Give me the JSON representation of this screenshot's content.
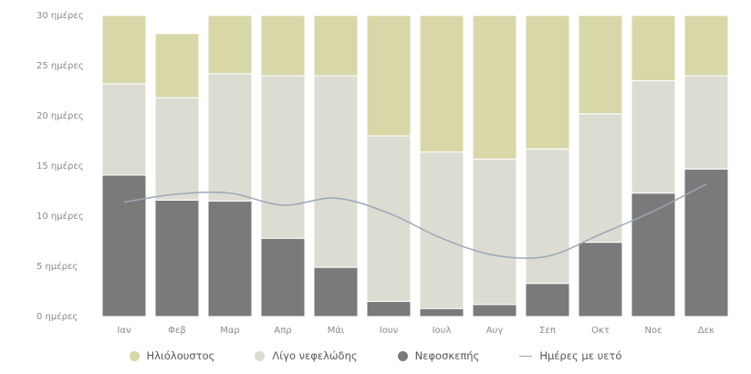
{
  "chart_data": {
    "type": "bar",
    "stacked": true,
    "categories": [
      "Ιαν",
      "Φεβ",
      "Μαρ",
      "Απρ",
      "Μάι",
      "Ιουν",
      "Ιουλ",
      "Αυγ",
      "Σεπ",
      "Οκτ",
      "Νοε",
      "Δεκ"
    ],
    "y_tick_labels": [
      "0 ημέρες",
      "5 ημέρες",
      "10 ημέρες",
      "15 ημέρες",
      "20 ημέρες",
      "25 ημέρες",
      "30 ημέρες"
    ],
    "ylim": [
      0,
      30
    ],
    "grid": false,
    "legend_position": "bottom",
    "series": [
      {
        "name": "Νεφοσκεπής",
        "color": "#7a7a7a",
        "values": [
          14.1,
          11.6,
          11.5,
          7.8,
          4.9,
          1.5,
          0.8,
          1.2,
          3.3,
          7.4,
          12.3,
          14.7
        ]
      },
      {
        "name": "Λίγο νεφελώδης",
        "color": "#dcdcd2",
        "values": [
          9.1,
          10.2,
          12.7,
          16.2,
          19.1,
          16.5,
          15.6,
          14.5,
          13.4,
          12.8,
          11.2,
          9.3
        ]
      },
      {
        "name": "Ηλιόλουστος",
        "color": "#d8d7a7",
        "values": [
          6.8,
          6.4,
          5.8,
          6.0,
          6.0,
          12.0,
          13.6,
          14.3,
          13.3,
          9.8,
          6.5,
          6.0
        ]
      }
    ],
    "line_series": {
      "name": "Ημέρες με υετό",
      "color": "#9aa8b8",
      "values": [
        11.4,
        12.2,
        12.3,
        11.1,
        11.8,
        10.3,
        7.8,
        6.1,
        6.0,
        8.2,
        10.5,
        13.2
      ]
    }
  },
  "legend": [
    {
      "label": "Ηλιόλουστος",
      "color": "#d8d7a7",
      "kind": "dot"
    },
    {
      "label": "Λίγο νεφελώδης",
      "color": "#dcdcd2",
      "kind": "dot"
    },
    {
      "label": "Νεφοσκεπής",
      "color": "#7a7a7a",
      "kind": "dot"
    },
    {
      "label": "Ημέρες με υετό",
      "color": "#9aa8b8",
      "kind": "line"
    }
  ]
}
